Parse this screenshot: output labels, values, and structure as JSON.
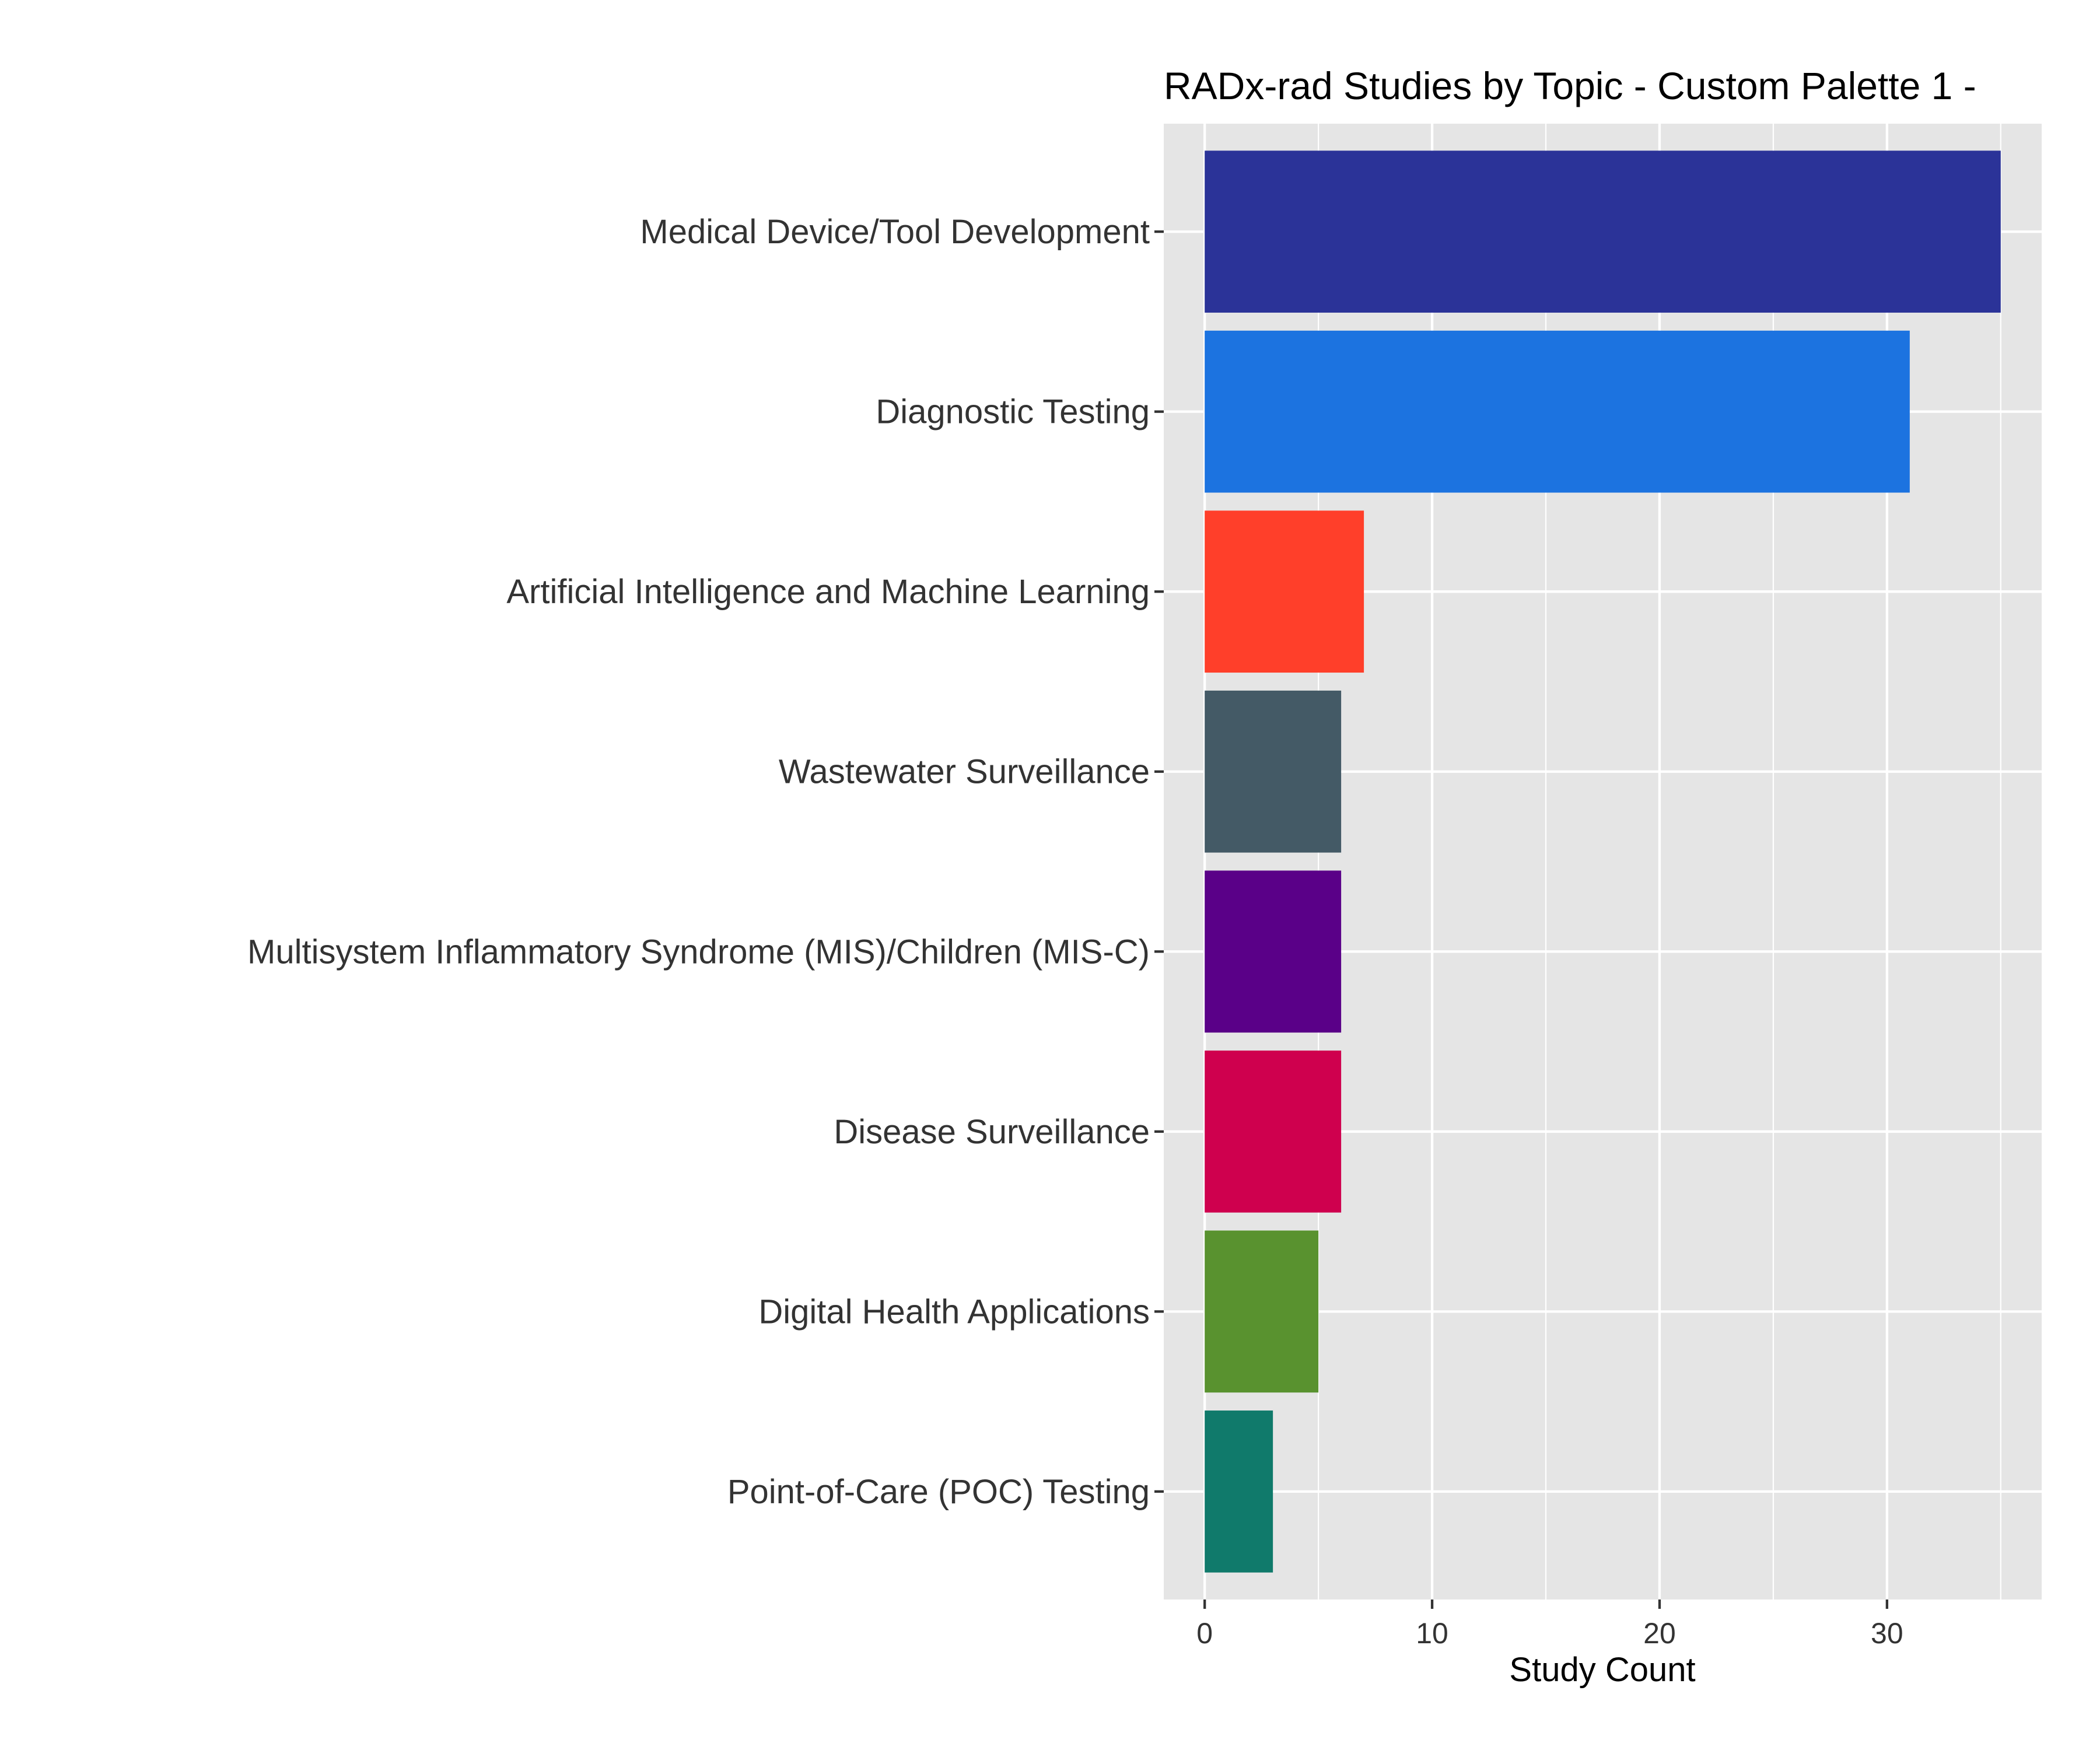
{
  "chart_data": {
    "type": "bar",
    "orientation": "horizontal",
    "title": "RADx-rad Studies by Topic - Custom Palette 1 -",
    "xlabel": "Study Count",
    "ylabel": "",
    "xlim": [
      -1.8,
      36.8
    ],
    "x_ticks": [
      0,
      10,
      20,
      30
    ],
    "x_tick_labels": [
      "0",
      "10",
      "20",
      "30"
    ],
    "grid": true,
    "categories": [
      "Medical Device/Tool Development",
      "Diagnostic Testing",
      "Artificial Intelligence and Machine Learning",
      "Wastewater Surveillance",
      "Multisystem Inflammatory Syndrome (MIS)/Children (MIS-C)",
      "Disease Surveillance",
      "Digital Health Applications",
      "Point-of-Care (POC) Testing"
    ],
    "values": [
      35,
      31,
      7,
      6,
      6,
      6,
      5,
      3
    ],
    "colors": [
      "#2b3398",
      "#1c73e0",
      "#ff3f2a",
      "#445a66",
      "#5a0088",
      "#cf004e",
      "#59922f",
      "#107a6b"
    ]
  }
}
